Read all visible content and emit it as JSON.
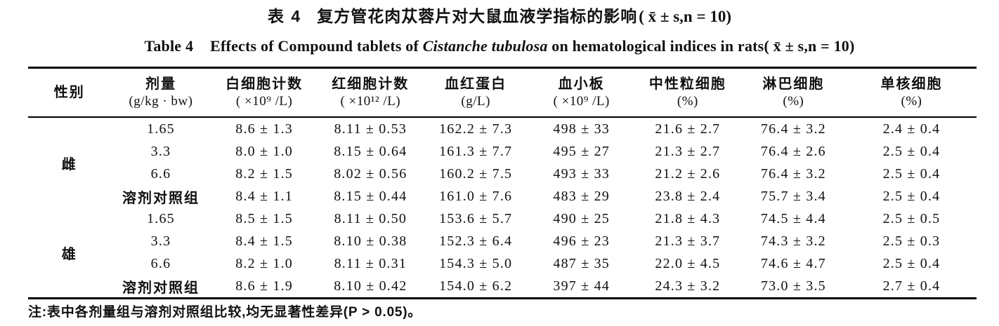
{
  "title_zh": {
    "label": "表 4",
    "text": "复方管花肉苁蓉片对大鼠血液学指标的影响",
    "stat": "( x̄  ± s,n = 10)"
  },
  "title_en": {
    "label": "Table 4",
    "text_before_italic": "Effects of Compound tablets of ",
    "italic": "Cistanche tubulosa",
    "text_after_italic": " on hematological indices in rats",
    "stat": "( x̄  ± s,n = 10)"
  },
  "table": {
    "columns": [
      {
        "name": "性别",
        "unit": ""
      },
      {
        "name": "剂量",
        "unit": "(g/kg · bw)"
      },
      {
        "name": "白细胞计数",
        "unit": "( ×10⁹ /L)"
      },
      {
        "name": "红细胞计数",
        "unit": "( ×10¹² /L)"
      },
      {
        "name": "血红蛋白",
        "unit": "(g/L)"
      },
      {
        "name": "血小板",
        "unit": "( ×10⁹ /L)"
      },
      {
        "name": "中性粒细胞",
        "unit": "(%)"
      },
      {
        "name": "淋巴细胞",
        "unit": "(%)"
      },
      {
        "name": "单核细胞",
        "unit": "(%)"
      }
    ],
    "groups": [
      {
        "gender": "雌",
        "rows": [
          [
            "1.65",
            "8.6 ± 1.3",
            "8.11 ± 0.53",
            "162.2 ± 7.3",
            "498 ± 33",
            "21.6 ± 2.7",
            "76.4 ± 3.2",
            "2.4 ± 0.4"
          ],
          [
            "3.3",
            "8.0 ± 1.0",
            "8.15 ± 0.64",
            "161.3 ± 7.7",
            "495 ± 27",
            "21.3 ± 2.7",
            "76.4 ± 2.6",
            "2.5 ± 0.4"
          ],
          [
            "6.6",
            "8.2 ± 1.5",
            "8.02 ± 0.56",
            "160.2 ± 7.5",
            "493 ± 33",
            "21.2 ± 2.6",
            "76.4 ± 3.2",
            "2.5 ± 0.4"
          ],
          [
            "溶剂对照组",
            "8.4 ± 1.1",
            "8.15 ± 0.44",
            "161.0 ± 7.6",
            "483 ± 29",
            "23.8 ± 2.4",
            "75.7 ± 3.4",
            "2.5 ± 0.4"
          ]
        ]
      },
      {
        "gender": "雄",
        "rows": [
          [
            "1.65",
            "8.5 ± 1.5",
            "8.11 ± 0.50",
            "153.6 ± 5.7",
            "490 ± 25",
            "21.8 ± 4.3",
            "74.5 ± 4.4",
            "2.5 ± 0.5"
          ],
          [
            "3.3",
            "8.4 ± 1.5",
            "8.10 ± 0.38",
            "152.3 ± 6.4",
            "496 ± 23",
            "21.3 ± 3.7",
            "74.3 ± 3.2",
            "2.5 ± 0.3"
          ],
          [
            "6.6",
            "8.2 ± 1.0",
            "8.11 ± 0.31",
            "154.3 ± 5.0",
            "487 ± 35",
            "22.0 ± 4.5",
            "74.6 ± 4.7",
            "2.5 ± 0.4"
          ],
          [
            "溶剂对照组",
            "8.6 ± 1.9",
            "8.10 ± 0.42",
            "154.0 ± 6.2",
            "397 ± 44",
            "24.3 ± 3.2",
            "73.0 ± 3.5",
            "2.7 ± 0.4"
          ]
        ]
      }
    ]
  },
  "footnote": "注:表中各剂量组与溶剂对照组比较,均无显著性差异(P > 0.05)。"
}
